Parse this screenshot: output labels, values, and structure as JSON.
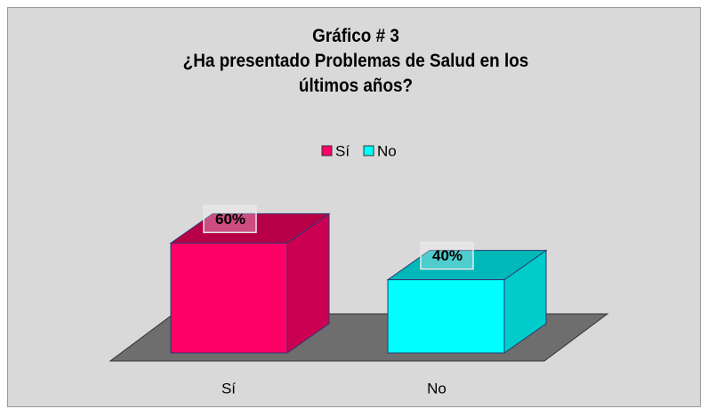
{
  "chart_data": {
    "type": "bar",
    "title": "Gráfico # 3",
    "subtitle": "¿Ha presentado Problemas de Salud en los últimos años?",
    "categories": [
      "Sí",
      "No"
    ],
    "values": [
      60,
      40
    ],
    "value_labels": [
      "60%",
      "40%"
    ],
    "colors": [
      "#FF0066",
      "#00FFFF"
    ]
  }
}
